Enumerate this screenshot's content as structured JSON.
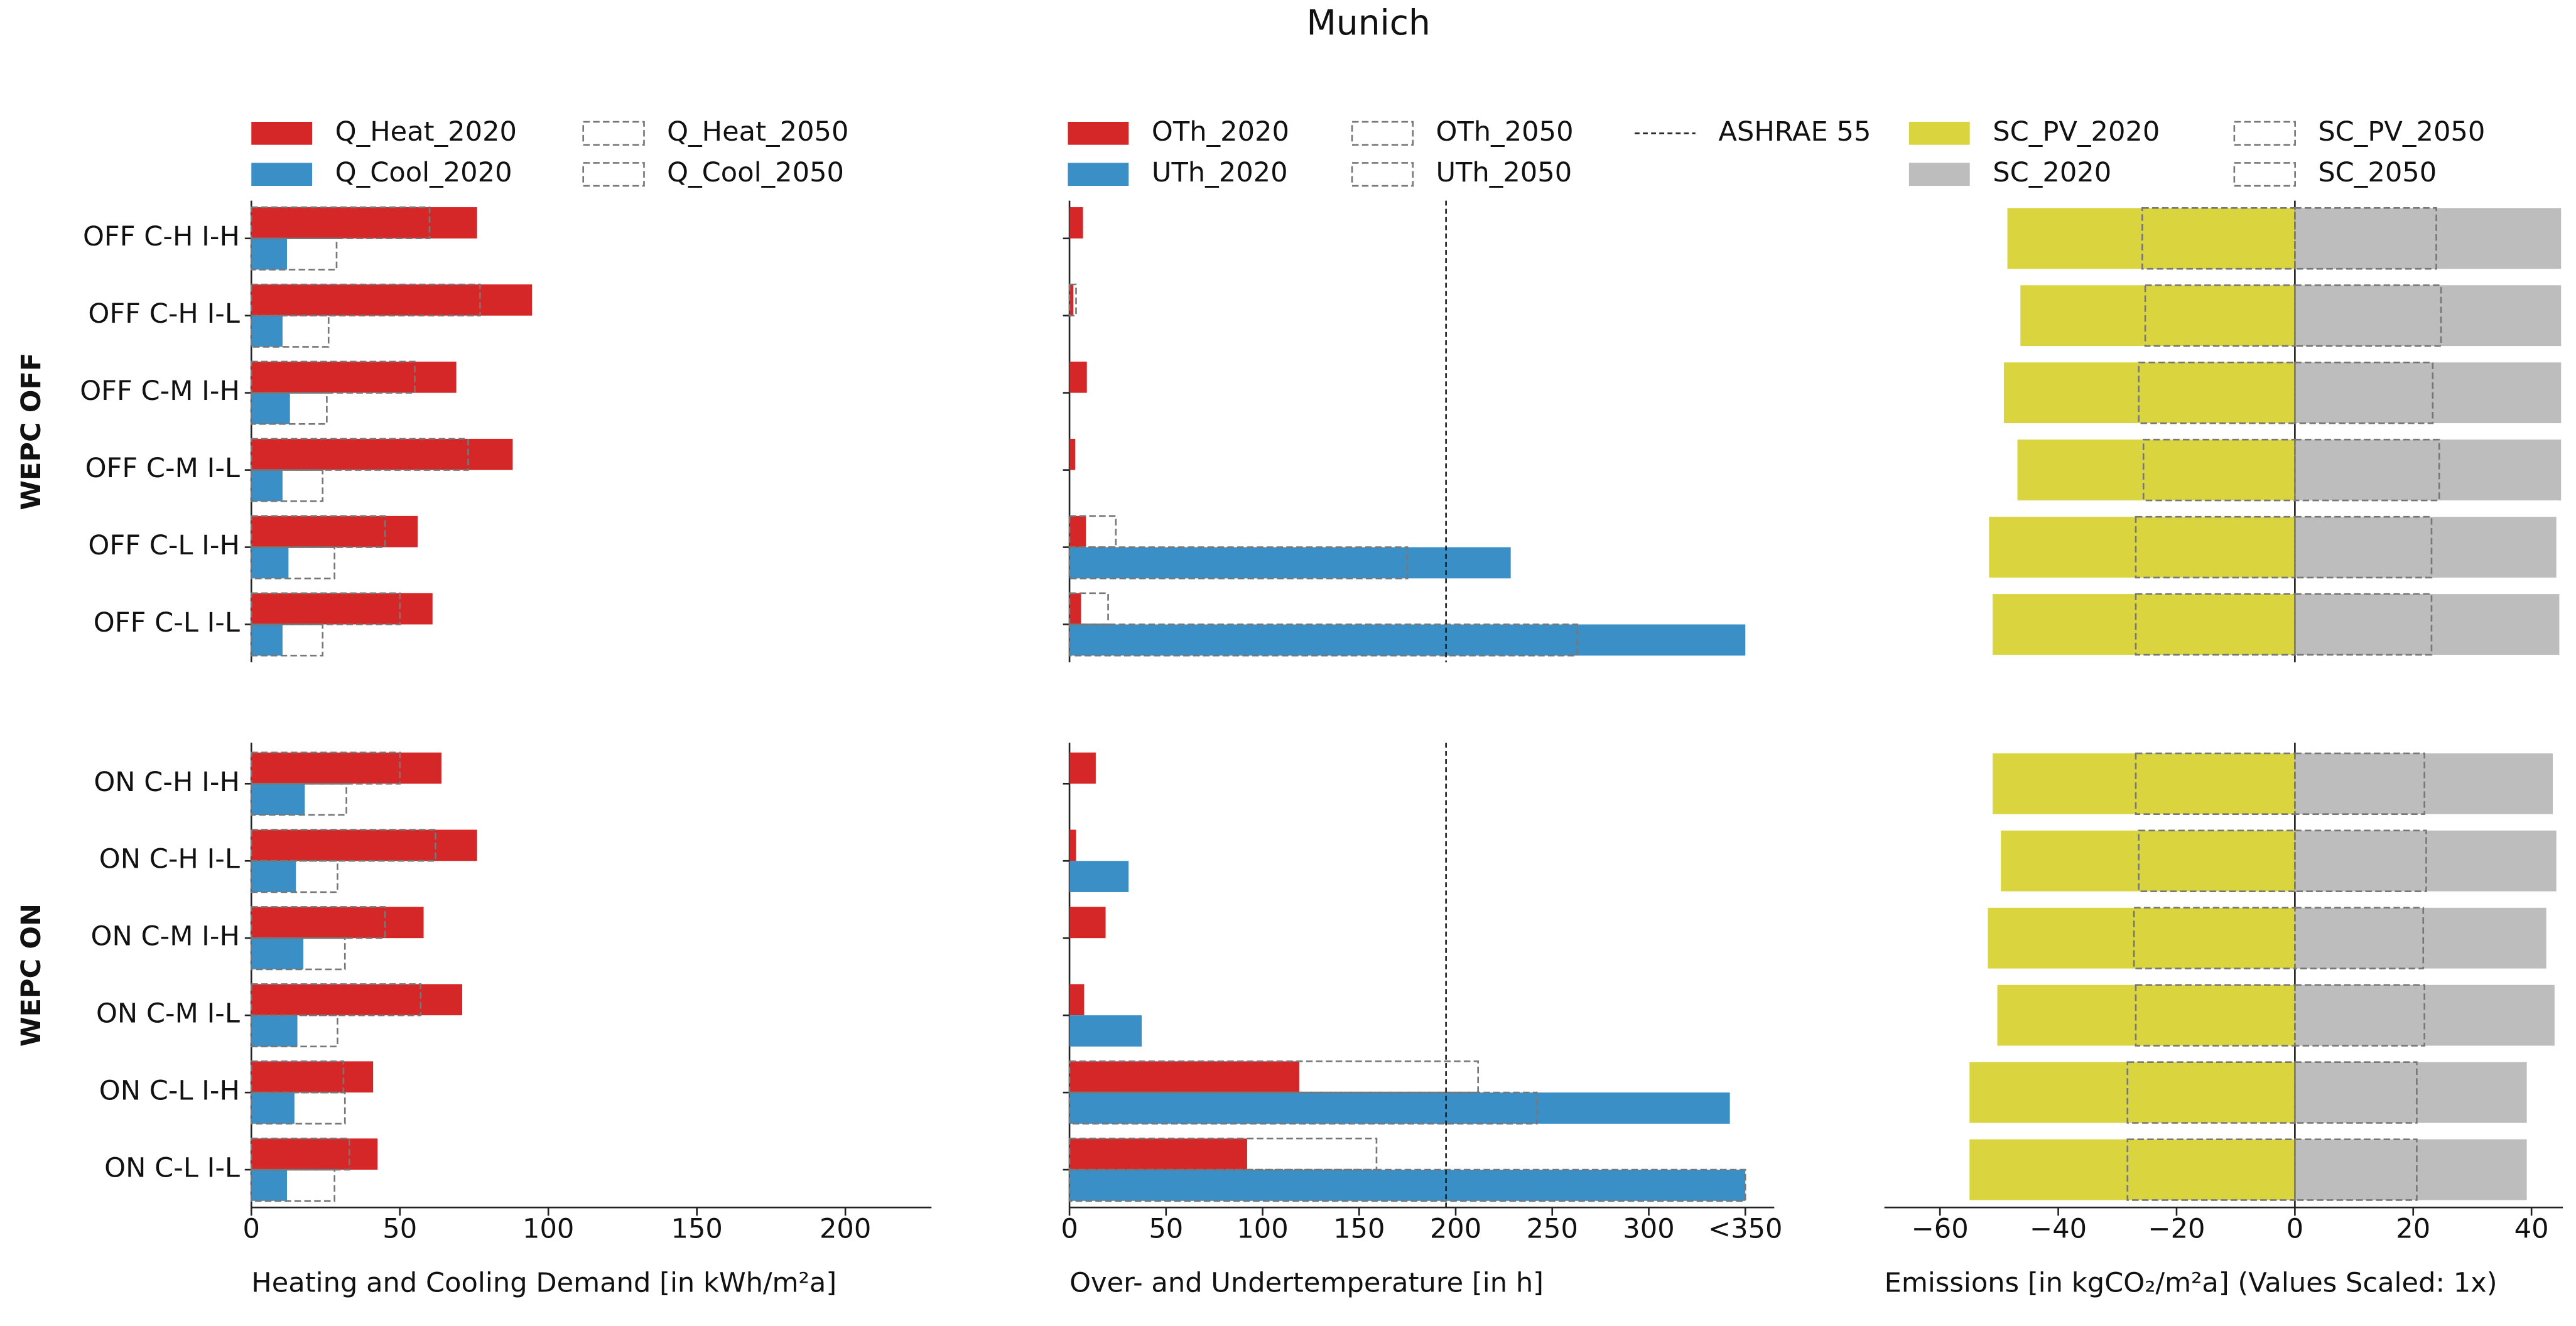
{
  "title": "Munich",
  "chart_data": [
    {
      "type": "bar",
      "orientation": "horizontal",
      "categories": [
        "OFF C-H I-H",
        "OFF C-H I-L",
        "OFF C-M I-H",
        "OFF C-M I-L",
        "OFF C-L I-H",
        "OFF C-L I-L",
        "ON C-H I-H",
        "ON C-H I-L",
        "ON C-M I-H",
        "ON C-M I-L",
        "ON C-L I-H",
        "ON C-L I-L"
      ],
      "groups": [
        "WEPC OFF",
        "WEPC ON"
      ],
      "xlabel": "Heating and Cooling Demand [in kWh/m²a]",
      "xlim": [
        0,
        229
      ],
      "xticks": [
        0,
        50,
        100,
        150,
        200
      ],
      "series": [
        {
          "name": "Q_Heat_2020",
          "color": "#d62728",
          "style": "filled",
          "position": "upper",
          "values": [
            76,
            94.5,
            69,
            88,
            56,
            61,
            64,
            76,
            58,
            71,
            41,
            42.5
          ]
        },
        {
          "name": "Q_Cool_2020",
          "color": "#3a8fc7",
          "style": "filled",
          "position": "lower",
          "values": [
            12,
            10.5,
            13,
            10.5,
            12.5,
            10.5,
            18,
            15,
            17.5,
            15.5,
            14.5,
            12
          ]
        },
        {
          "name": "Q_Heat_2050",
          "color": "#777777",
          "style": "dashed",
          "position": "upper",
          "values": [
            60,
            77,
            55,
            73,
            45,
            50,
            50,
            62,
            45,
            57,
            31,
            33
          ]
        },
        {
          "name": "Q_Cool_2050",
          "color": "#777777",
          "style": "dashed",
          "position": "lower",
          "values": [
            28.7,
            26,
            25.4,
            24,
            28,
            24,
            32,
            29,
            31.5,
            29,
            31.5,
            28
          ]
        }
      ]
    },
    {
      "type": "bar",
      "orientation": "horizontal",
      "xlabel": "Over- and Undertemperature [in h]",
      "xlim": [
        0,
        365
      ],
      "xticks": [
        0,
        50,
        100,
        150,
        200,
        250,
        300,
        {
          "value": 350,
          "label": "<350"
        }
      ],
      "series": [
        {
          "name": "OTh_2020",
          "color": "#d62728",
          "style": "filled",
          "position": "upper",
          "values": [
            7,
            2,
            9,
            3,
            8.5,
            6,
            13.6,
            3.4,
            18.7,
            7.6,
            119,
            92
          ]
        },
        {
          "name": "UTh_2020",
          "color": "#3a8fc7",
          "style": "filled",
          "position": "lower",
          "values": [
            0,
            0,
            0,
            0,
            228.5,
            350,
            0,
            30.6,
            0,
            37.4,
            342,
            350
          ]
        },
        {
          "name": "OTh_2050",
          "color": "#777777",
          "style": "dashed",
          "position": "upper",
          "values": [
            0,
            3.4,
            0,
            0,
            24,
            20,
            0,
            0,
            0,
            0,
            211.6,
            159
          ]
        },
        {
          "name": "UTh_2050",
          "color": "#777777",
          "style": "dashed",
          "position": "lower",
          "values": [
            0,
            0,
            0,
            0,
            175,
            263,
            0,
            0,
            0,
            0,
            242,
            350
          ]
        }
      ],
      "reference_line": {
        "name": "ASHRAE 55",
        "value": 195
      }
    },
    {
      "type": "bar",
      "orientation": "horizontal",
      "xlabel": "Emissions [in kgCO₂/m²a] (Values Scaled: 1x)",
      "xlim": [
        -69.4,
        45.3
      ],
      "xticks": [
        {
          "value": -60,
          "label": "−60"
        },
        {
          "value": -40,
          "label": "−40"
        },
        {
          "value": -20,
          "label": "−20"
        },
        0,
        20,
        40
      ],
      "series": [
        {
          "name": "SC_PV_2020",
          "color": "#dad53e",
          "style": "filled",
          "position": "full",
          "values": [
            -48.6,
            -46.4,
            -49.2,
            -46.9,
            -51.7,
            -51.1,
            -51.1,
            -49.7,
            -51.9,
            -50.3,
            -55,
            -55
          ]
        },
        {
          "name": "SC_2020",
          "color": "#bdbdbd",
          "style": "filled",
          "position": "full",
          "values": [
            45,
            45,
            45,
            45,
            44.2,
            44.7,
            43.6,
            44.2,
            42.5,
            43.9,
            39.2,
            39.2
          ]
        },
        {
          "name": "SC_PV_2050",
          "color": "#777777",
          "style": "dashed",
          "position": "full",
          "values": [
            -25.8,
            -25.3,
            -26.4,
            -25.6,
            -26.9,
            -26.9,
            -26.9,
            -26.4,
            -27.2,
            -26.9,
            -28.3,
            -28.3
          ]
        },
        {
          "name": "SC_2050",
          "color": "#777777",
          "style": "dashed",
          "position": "full",
          "values": [
            23.9,
            24.7,
            23.3,
            24.4,
            23.1,
            23.1,
            21.9,
            22.2,
            21.7,
            21.9,
            20.6,
            20.6
          ]
        }
      ]
    }
  ]
}
